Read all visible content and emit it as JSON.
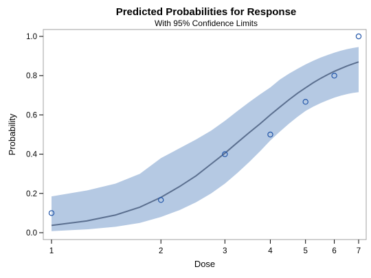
{
  "chart_data": {
    "type": "scatter",
    "title": "Predicted Probabilities for Response",
    "subtitle": "With 95% Confidence Limits",
    "xlabel": "Dose",
    "ylabel": "Probability",
    "x_scale": "log",
    "xlim": [
      1,
      7
    ],
    "ylim": [
      0,
      1
    ],
    "x_ticks": [
      1,
      2,
      3,
      4,
      5,
      6,
      7
    ],
    "y_ticks": [
      0.0,
      0.2,
      0.4,
      0.6,
      0.8,
      1.0
    ],
    "x_tick_labels": [
      "1",
      "2",
      "3",
      "4",
      "5",
      "6",
      "7"
    ],
    "y_tick_labels": [
      "0.0",
      "0.2",
      "0.4",
      "0.6",
      "0.8",
      "1.0"
    ],
    "observed": {
      "x": [
        1,
        2,
        3,
        4,
        5,
        6,
        7
      ],
      "y": [
        0.1,
        0.1667,
        0.4,
        0.5,
        0.6667,
        0.8,
        1.0
      ]
    },
    "fit_curve": {
      "x": [
        1,
        1.25,
        1.5,
        1.75,
        2,
        2.25,
        2.5,
        2.75,
        3,
        3.25,
        3.5,
        3.75,
        4,
        4.25,
        4.5,
        4.75,
        5,
        5.25,
        5.5,
        5.75,
        6,
        6.25,
        6.5,
        6.75,
        7
      ],
      "y": [
        0.037,
        0.06,
        0.09,
        0.13,
        0.18,
        0.235,
        0.29,
        0.35,
        0.405,
        0.46,
        0.51,
        0.555,
        0.6,
        0.64,
        0.677,
        0.71,
        0.738,
        0.764,
        0.786,
        0.805,
        0.822,
        0.836,
        0.849,
        0.86,
        0.87
      ]
    },
    "confidence_band": {
      "x": [
        1,
        1.25,
        1.5,
        1.75,
        2,
        2.25,
        2.5,
        2.75,
        3,
        3.25,
        3.5,
        3.75,
        4,
        4.25,
        4.5,
        4.75,
        5,
        5.25,
        5.5,
        5.75,
        6,
        6.25,
        6.5,
        6.75,
        7
      ],
      "lower": [
        0.008,
        0.017,
        0.03,
        0.05,
        0.08,
        0.115,
        0.155,
        0.2,
        0.25,
        0.305,
        0.36,
        0.415,
        0.47,
        0.515,
        0.555,
        0.59,
        0.62,
        0.642,
        0.66,
        0.675,
        0.688,
        0.698,
        0.706,
        0.712,
        0.716
      ],
      "upper": [
        0.185,
        0.215,
        0.25,
        0.3,
        0.38,
        0.43,
        0.475,
        0.52,
        0.57,
        0.62,
        0.665,
        0.705,
        0.74,
        0.78,
        0.81,
        0.835,
        0.857,
        0.876,
        0.892,
        0.905,
        0.917,
        0.927,
        0.935,
        0.941,
        0.946
      ]
    },
    "colors": {
      "band": "#b5c9e3",
      "curve": "#5b6f8f",
      "marker": "#2155a8",
      "frame": "#a0a0a0"
    },
    "grid": false,
    "legend": "none"
  }
}
